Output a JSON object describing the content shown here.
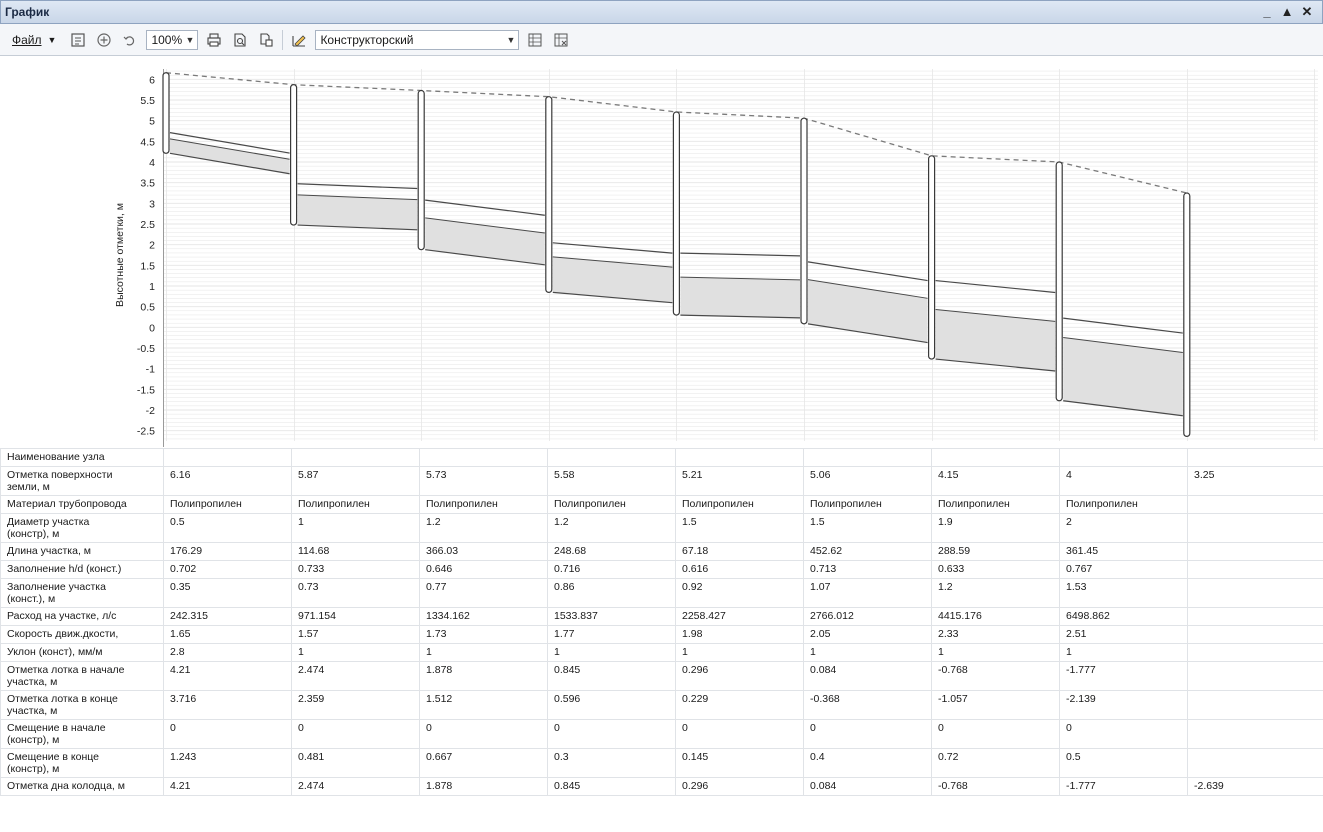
{
  "window": {
    "title": "График",
    "controls": [
      "_",
      "▲",
      "✕"
    ]
  },
  "toolbar": {
    "file_label": "Файл",
    "zoom": "100%",
    "mode": "Конструкторский",
    "icons": [
      "refresh-icon",
      "add-circle-icon",
      "undo-icon",
      "print-icon",
      "print-preview-icon",
      "copy-icon",
      "draw-icon",
      "columns-icon",
      "columns-remove-icon"
    ]
  },
  "chart_data": {
    "type": "line",
    "ylabel": "Высотные отметки, м",
    "ylim": [
      -2.75,
      6.25
    ],
    "yticks": [
      "6",
      "5.5",
      "5",
      "4.5",
      "4",
      "3.5",
      "3",
      "2.5",
      "2",
      "1.5",
      "1",
      "0.5",
      "0",
      "-0.5",
      "-1",
      "-1.5",
      "-2",
      "-2.5"
    ],
    "nodes": 9,
    "series": [
      {
        "values": [
          6.16,
          5.87,
          5.73,
          5.58,
          5.21,
          5.06,
          4.15,
          4,
          3.25
        ]
      }
    ],
    "segments": [
      {
        "invert_start": 4.21,
        "invert_end": 3.716,
        "diameter": 0.5,
        "fill": 0.35
      },
      {
        "invert_start": 2.474,
        "invert_end": 2.359,
        "diameter": 1,
        "fill": 0.73
      },
      {
        "invert_start": 1.878,
        "invert_end": 1.512,
        "diameter": 1.2,
        "fill": 0.77
      },
      {
        "invert_start": 0.845,
        "invert_end": 0.596,
        "diameter": 1.2,
        "fill": 0.86
      },
      {
        "invert_start": 0.296,
        "invert_end": 0.229,
        "diameter": 1.5,
        "fill": 0.92
      },
      {
        "invert_start": 0.084,
        "invert_end": -0.368,
        "diameter": 1.5,
        "fill": 1.07
      },
      {
        "invert_start": -0.768,
        "invert_end": -1.057,
        "diameter": 1.9,
        "fill": 1.2
      },
      {
        "invert_start": -1.777,
        "invert_end": -2.139,
        "diameter": 2,
        "fill": 1.53
      }
    ],
    "well_bottoms": [
      4.21,
      2.474,
      1.878,
      0.845,
      0.296,
      0.084,
      -0.768,
      -1.777,
      -2.639
    ]
  },
  "table": {
    "rows": [
      {
        "label": [
          "Наименование узла"
        ],
        "cells": [
          "",
          "",
          "",
          "",
          "",
          "",
          "",
          "",
          ""
        ]
      },
      {
        "label": [
          "Отметка поверхности",
          "земли, м"
        ],
        "cells": [
          "6.16",
          "5.87",
          "5.73",
          "5.58",
          "5.21",
          "5.06",
          "4.15",
          "4",
          "3.25"
        ]
      },
      {
        "label": [
          "Материал трубопровода"
        ],
        "cells": [
          "Полипропилен",
          "Полипропилен",
          "Полипропилен",
          "Полипропилен",
          "Полипропилен",
          "Полипропилен",
          "Полипропилен",
          "Полипропилен",
          ""
        ]
      },
      {
        "label": [
          "Диаметр участка",
          "(констр), м"
        ],
        "cells": [
          "0.5",
          "1",
          "1.2",
          "1.2",
          "1.5",
          "1.5",
          "1.9",
          "2",
          ""
        ]
      },
      {
        "label": [
          "Длина участка, м"
        ],
        "cells": [
          "176.29",
          "114.68",
          "366.03",
          "248.68",
          "67.18",
          "452.62",
          "288.59",
          "361.45",
          ""
        ]
      },
      {
        "label": [
          "Заполнение h/d (конст.)"
        ],
        "cells": [
          "0.702",
          "0.733",
          "0.646",
          "0.716",
          "0.616",
          "0.713",
          "0.633",
          "0.767",
          ""
        ]
      },
      {
        "label": [
          "Заполнение участка",
          "(конст.), м"
        ],
        "cells": [
          "0.35",
          "0.73",
          "0.77",
          "0.86",
          "0.92",
          "1.07",
          "1.2",
          "1.53",
          ""
        ]
      },
      {
        "label": [
          "Расход на участке, л/с"
        ],
        "cells": [
          "242.315",
          "971.154",
          "1334.162",
          "1533.837",
          "2258.427",
          "2766.012",
          "4415.176",
          "6498.862",
          ""
        ]
      },
      {
        "label": [
          "Скорость движ.дкости,"
        ],
        "cells": [
          "1.65",
          "1.57",
          "1.73",
          "1.77",
          "1.98",
          "2.05",
          "2.33",
          "2.51",
          ""
        ]
      },
      {
        "label": [
          "Уклон (конст), мм/м"
        ],
        "cells": [
          "2.8",
          "1",
          "1",
          "1",
          "1",
          "1",
          "1",
          "1",
          ""
        ]
      },
      {
        "label": [
          "Отметка лотка в начале",
          "участка, м"
        ],
        "cells": [
          "4.21",
          "2.474",
          "1.878",
          "0.845",
          "0.296",
          "0.084",
          "-0.768",
          "-1.777",
          ""
        ]
      },
      {
        "label": [
          "Отметка лотка в конце",
          "участка, м"
        ],
        "cells": [
          "3.716",
          "2.359",
          "1.512",
          "0.596",
          "0.229",
          "-0.368",
          "-1.057",
          "-2.139",
          ""
        ]
      },
      {
        "label": [
          "Смещение в начале",
          "(констр), м"
        ],
        "cells": [
          "0",
          "0",
          "0",
          "0",
          "0",
          "0",
          "0",
          "0",
          ""
        ]
      },
      {
        "label": [
          "Смещение в конце",
          "(констр), м"
        ],
        "cells": [
          "1.243",
          "0.481",
          "0.667",
          "0.3",
          "0.145",
          "0.4",
          "0.72",
          "0.5",
          ""
        ]
      },
      {
        "label": [
          "Отметка дна колодца, м"
        ],
        "cells": [
          "4.21",
          "2.474",
          "1.878",
          "0.845",
          "0.296",
          "0.084",
          "-0.768",
          "-1.777",
          "-2.639"
        ]
      }
    ]
  },
  "colors": {
    "pipe_fill": "#e0e0e0",
    "pipe_line": "#4a4a4a",
    "grid": "#e6e6e6",
    "ground": "#7a7a7a",
    "well": "#3a3a3a"
  }
}
